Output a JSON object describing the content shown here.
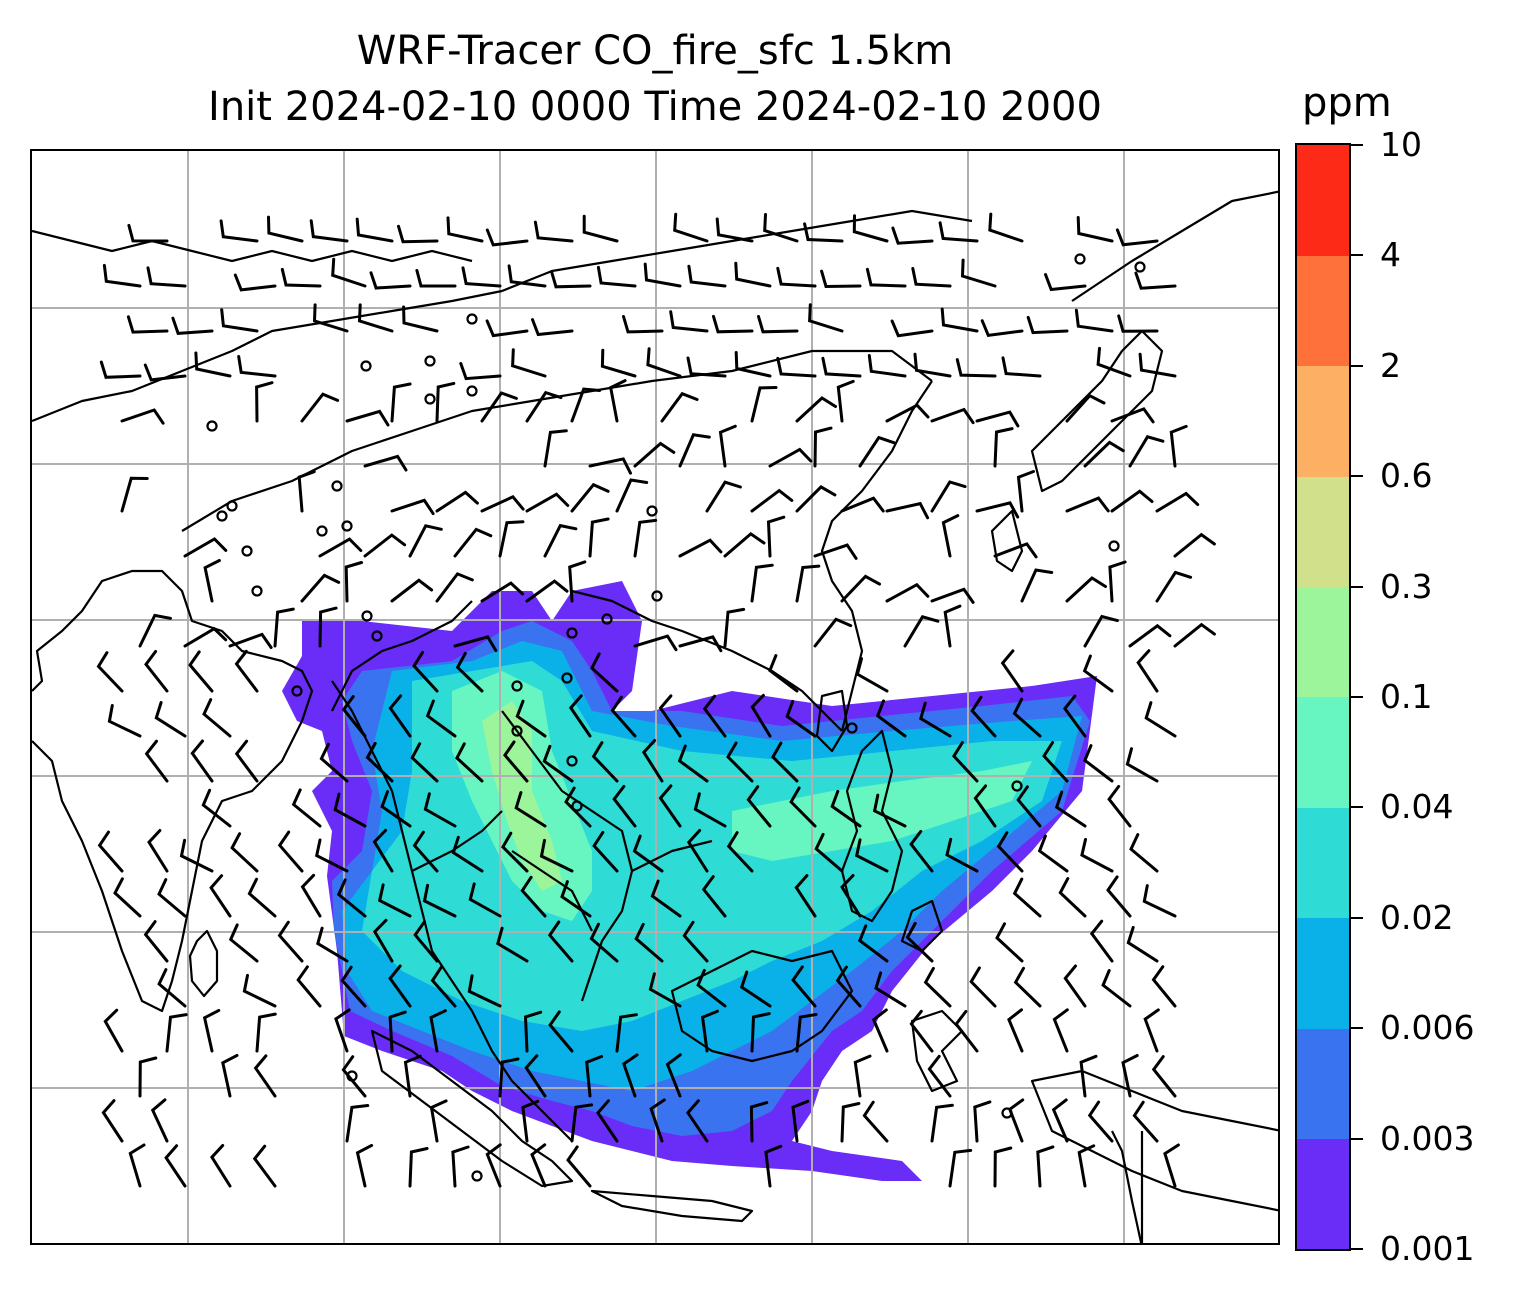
{
  "title": {
    "line1": "WRF-Tracer CO_fire_sfc 1.5km",
    "line2": "Init 2024-02-10 0000 Time 2024-02-10 2000"
  },
  "map": {
    "variable": "CO_fire_sfc",
    "gridlines": true,
    "wind_barbs": true,
    "plume_colors": {
      "lowest": "#6a2cf7",
      "low": "#3a73f0",
      "mid": "#0ab0e8",
      "moderate": "#2fdbd5",
      "high": "#67f6c2",
      "highest": "#9cf59a"
    },
    "coastline_color": "#000000",
    "grid_color": "#b0b0b0"
  },
  "colorbar": {
    "unit": "ppm",
    "levels": [
      "0.001",
      "0.003",
      "0.006",
      "0.02",
      "0.04",
      "0.1",
      "0.3",
      "0.6",
      "2",
      "4",
      "10"
    ],
    "colors": [
      "#6a2cf7",
      "#3a73f0",
      "#0ab0e8",
      "#2fdbd5",
      "#67f6c2",
      "#9cf59a",
      "#d1e08a",
      "#fdb063",
      "#ff713b",
      "#fd2a17"
    ]
  }
}
